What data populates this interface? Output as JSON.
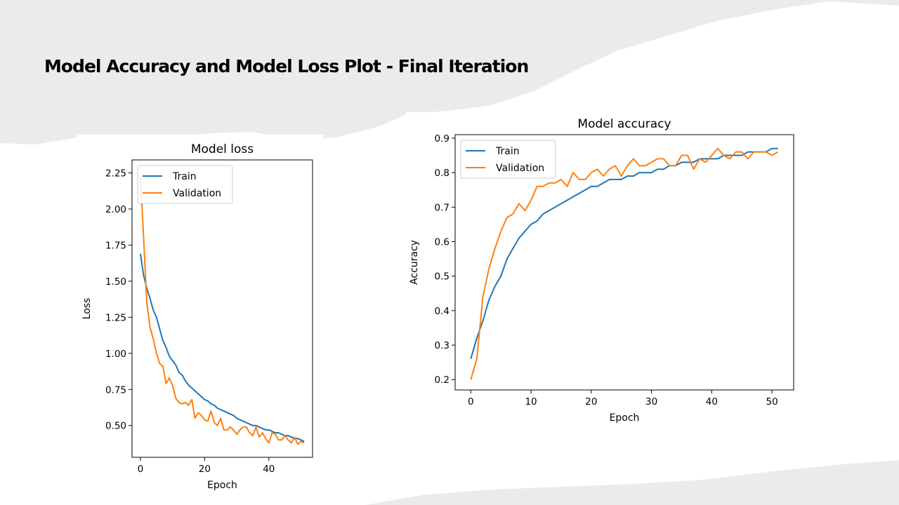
{
  "slide": {
    "title": "Model Accuracy and Model Loss Plot - Final Iteration"
  },
  "colors": {
    "train": "#1f77b4",
    "validation": "#ff7f0e",
    "background_paper": "#ebebea"
  },
  "chart_data": [
    {
      "type": "line",
      "title": "Model loss",
      "xlabel": "Epoch",
      "ylabel": "Loss",
      "xlim": [
        -2.6,
        53.6
      ],
      "ylim": [
        0.28,
        2.34
      ],
      "xticks": [
        0,
        20,
        40
      ],
      "yticks": [
        0.5,
        0.75,
        1.0,
        1.25,
        1.5,
        1.75,
        2.0,
        2.25
      ],
      "ytick_labels": [
        "0.50",
        "0.75",
        "1.00",
        "1.25",
        "1.50",
        "1.75",
        "2.00",
        "2.25"
      ],
      "grid": false,
      "legend": "upper-left",
      "series": [
        {
          "name": "Train",
          "x": [
            0,
            1,
            2,
            3,
            4,
            5,
            6,
            7,
            8,
            9,
            10,
            11,
            12,
            13,
            14,
            15,
            16,
            17,
            18,
            19,
            20,
            21,
            22,
            23,
            24,
            25,
            26,
            27,
            28,
            29,
            30,
            31,
            32,
            33,
            34,
            35,
            36,
            37,
            38,
            39,
            40,
            41,
            42,
            43,
            44,
            45,
            46,
            47,
            48,
            49,
            50,
            51
          ],
          "values": [
            1.69,
            1.54,
            1.45,
            1.38,
            1.3,
            1.25,
            1.17,
            1.09,
            1.04,
            0.98,
            0.95,
            0.92,
            0.87,
            0.85,
            0.81,
            0.78,
            0.76,
            0.74,
            0.72,
            0.7,
            0.68,
            0.67,
            0.65,
            0.64,
            0.62,
            0.61,
            0.6,
            0.59,
            0.58,
            0.57,
            0.55,
            0.54,
            0.53,
            0.52,
            0.51,
            0.5,
            0.5,
            0.49,
            0.48,
            0.47,
            0.47,
            0.46,
            0.45,
            0.45,
            0.44,
            0.43,
            0.43,
            0.42,
            0.41,
            0.41,
            0.4,
            0.39
          ]
        },
        {
          "name": "Validation",
          "x": [
            0,
            1,
            2,
            3,
            4,
            5,
            6,
            7,
            8,
            9,
            10,
            11,
            12,
            13,
            14,
            15,
            16,
            17,
            18,
            19,
            20,
            21,
            22,
            23,
            24,
            25,
            26,
            27,
            28,
            29,
            30,
            31,
            32,
            33,
            34,
            35,
            36,
            37,
            38,
            39,
            40,
            41,
            42,
            43,
            44,
            45,
            46,
            47,
            48,
            49,
            50,
            51
          ],
          "values": [
            2.22,
            1.8,
            1.35,
            1.18,
            1.1,
            1.0,
            0.93,
            0.91,
            0.79,
            0.83,
            0.78,
            0.69,
            0.66,
            0.65,
            0.66,
            0.64,
            0.68,
            0.55,
            0.59,
            0.57,
            0.54,
            0.53,
            0.6,
            0.52,
            0.5,
            0.55,
            0.47,
            0.47,
            0.49,
            0.47,
            0.44,
            0.47,
            0.49,
            0.49,
            0.45,
            0.43,
            0.49,
            0.42,
            0.45,
            0.41,
            0.38,
            0.45,
            0.44,
            0.4,
            0.4,
            0.43,
            0.4,
            0.38,
            0.42,
            0.37,
            0.39,
            0.38
          ]
        }
      ]
    },
    {
      "type": "line",
      "title": "Model accuracy",
      "xlabel": "Epoch",
      "ylabel": "Accuracy",
      "xlim": [
        -2.6,
        53.6
      ],
      "ylim": [
        0.17,
        0.91
      ],
      "xticks": [
        0,
        10,
        20,
        30,
        40,
        50
      ],
      "yticks": [
        0.2,
        0.3,
        0.4,
        0.5,
        0.6,
        0.7,
        0.8,
        0.9
      ],
      "ytick_labels": [
        "0.2",
        "0.3",
        "0.4",
        "0.5",
        "0.6",
        "0.7",
        "0.8",
        "0.9"
      ],
      "grid": false,
      "legend": "upper-left",
      "series": [
        {
          "name": "Train",
          "x": [
            0,
            1,
            2,
            3,
            4,
            5,
            6,
            7,
            8,
            9,
            10,
            11,
            12,
            13,
            14,
            15,
            16,
            17,
            18,
            19,
            20,
            21,
            22,
            23,
            24,
            25,
            26,
            27,
            28,
            29,
            30,
            31,
            32,
            33,
            34,
            35,
            36,
            37,
            38,
            39,
            40,
            41,
            42,
            43,
            44,
            45,
            46,
            47,
            48,
            49,
            50,
            51
          ],
          "values": [
            0.26,
            0.32,
            0.37,
            0.43,
            0.47,
            0.5,
            0.55,
            0.58,
            0.61,
            0.63,
            0.65,
            0.66,
            0.68,
            0.69,
            0.7,
            0.71,
            0.72,
            0.73,
            0.74,
            0.75,
            0.76,
            0.76,
            0.77,
            0.78,
            0.78,
            0.78,
            0.79,
            0.79,
            0.8,
            0.8,
            0.8,
            0.81,
            0.81,
            0.82,
            0.82,
            0.83,
            0.83,
            0.83,
            0.84,
            0.84,
            0.84,
            0.84,
            0.85,
            0.85,
            0.85,
            0.85,
            0.86,
            0.86,
            0.86,
            0.86,
            0.87,
            0.87
          ]
        },
        {
          "name": "Validation",
          "x": [
            0,
            1,
            2,
            3,
            4,
            5,
            6,
            7,
            8,
            9,
            10,
            11,
            12,
            13,
            14,
            15,
            16,
            17,
            18,
            19,
            20,
            21,
            22,
            23,
            24,
            25,
            26,
            27,
            28,
            29,
            30,
            31,
            32,
            33,
            34,
            35,
            36,
            37,
            38,
            39,
            40,
            41,
            42,
            43,
            44,
            45,
            46,
            47,
            48,
            49,
            50,
            51
          ],
          "values": [
            0.2,
            0.26,
            0.44,
            0.52,
            0.58,
            0.63,
            0.67,
            0.68,
            0.71,
            0.69,
            0.72,
            0.76,
            0.76,
            0.77,
            0.77,
            0.78,
            0.76,
            0.8,
            0.78,
            0.78,
            0.8,
            0.81,
            0.79,
            0.81,
            0.82,
            0.79,
            0.82,
            0.84,
            0.82,
            0.82,
            0.83,
            0.84,
            0.84,
            0.82,
            0.82,
            0.85,
            0.85,
            0.81,
            0.84,
            0.83,
            0.85,
            0.87,
            0.85,
            0.84,
            0.86,
            0.86,
            0.84,
            0.86,
            0.86,
            0.86,
            0.85,
            0.86
          ]
        }
      ]
    }
  ]
}
